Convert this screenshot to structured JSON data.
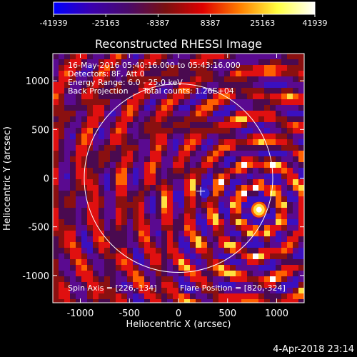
{
  "colorbar": {
    "ticks": [
      "-41939",
      "-25163",
      "-8387",
      "8387",
      "25163",
      "41939"
    ],
    "min": -41939,
    "max": 41939,
    "colors": [
      "#0000ff",
      "#3a00b0",
      "#4a0a6a",
      "#7a1010",
      "#e00000",
      "#ff8000",
      "#ffff40",
      "#ffffff"
    ]
  },
  "chart_data": {
    "type": "heatmap",
    "title": "Reconstructed RHESSI Image",
    "xlabel": "Heliocentric X (arcsec)",
    "ylabel": "Heliocentric Y (arcsec)",
    "xlim": [
      -1280,
      1280
    ],
    "ylim": [
      -1280,
      1280
    ],
    "xticks": [
      -1000,
      -500,
      0,
      500,
      1000
    ],
    "yticks": [
      -1000,
      -500,
      0,
      500,
      1000
    ],
    "solar_limb_radius": 960,
    "flare_position": [
      820,
      -324
    ],
    "cross_marker": [
      226,
      -134
    ],
    "value_range": [
      -41939,
      41939
    ]
  },
  "annotations": {
    "line1": "16-May-2016 05:40:16.000 to 05:43:16.000",
    "line2": "Detectors: 8F, Att 0",
    "line3": "Energy Range: 6.0 - 25.0 keV",
    "line4": "Back Projection",
    "line4b": "Total counts: 1.26E+04",
    "spin_axis": "Spin Axis = [226,-134]",
    "flare_pos": "Flare Position = [820,-324]"
  },
  "footer": {
    "date": "4-Apr-2018 23:14"
  }
}
